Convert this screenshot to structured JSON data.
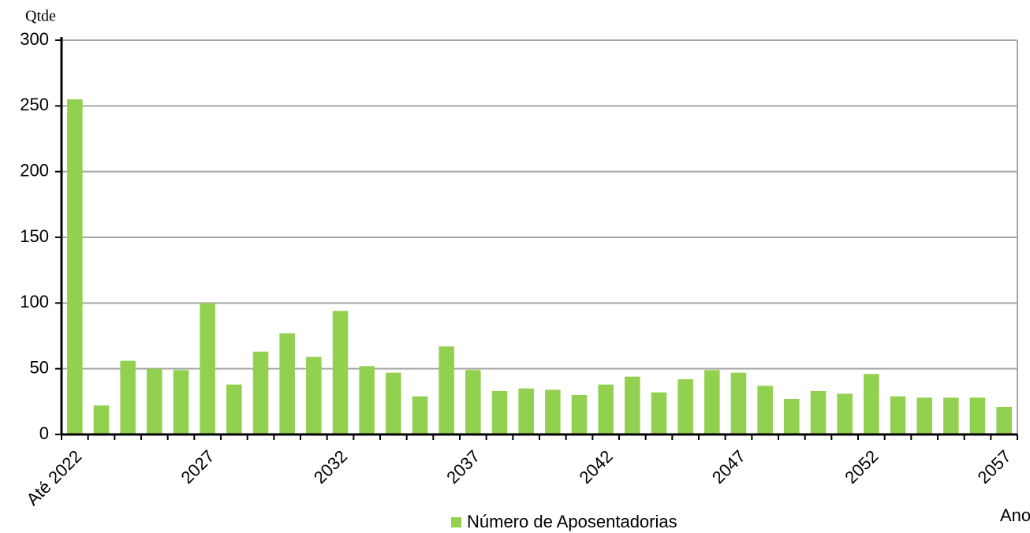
{
  "chart_data": {
    "type": "bar",
    "y_label": "Qtde",
    "x_label": "Ano",
    "categories": [
      "Até 2022",
      null,
      null,
      null,
      null,
      "2027",
      null,
      null,
      null,
      null,
      "2032",
      null,
      null,
      null,
      null,
      "2037",
      null,
      null,
      null,
      null,
      "2042",
      null,
      null,
      null,
      null,
      "2047",
      null,
      null,
      null,
      null,
      "2052",
      null,
      null,
      null,
      null,
      "2057"
    ],
    "series": [
      {
        "name": "Número de Aposentadorias",
        "color": "#92d050",
        "values": [
          255,
          22,
          56,
          50,
          49,
          100,
          38,
          63,
          77,
          59,
          94,
          52,
          47,
          29,
          67,
          49,
          33,
          35,
          34,
          30,
          38,
          44,
          32,
          42,
          49,
          47,
          37,
          27,
          33,
          31,
          46,
          29,
          28,
          28,
          28,
          21
        ]
      }
    ],
    "ylim": [
      0,
      300
    ],
    "yticks": [
      0,
      50,
      100,
      150,
      200,
      250,
      300
    ],
    "grid": true,
    "legend": "bottom"
  }
}
